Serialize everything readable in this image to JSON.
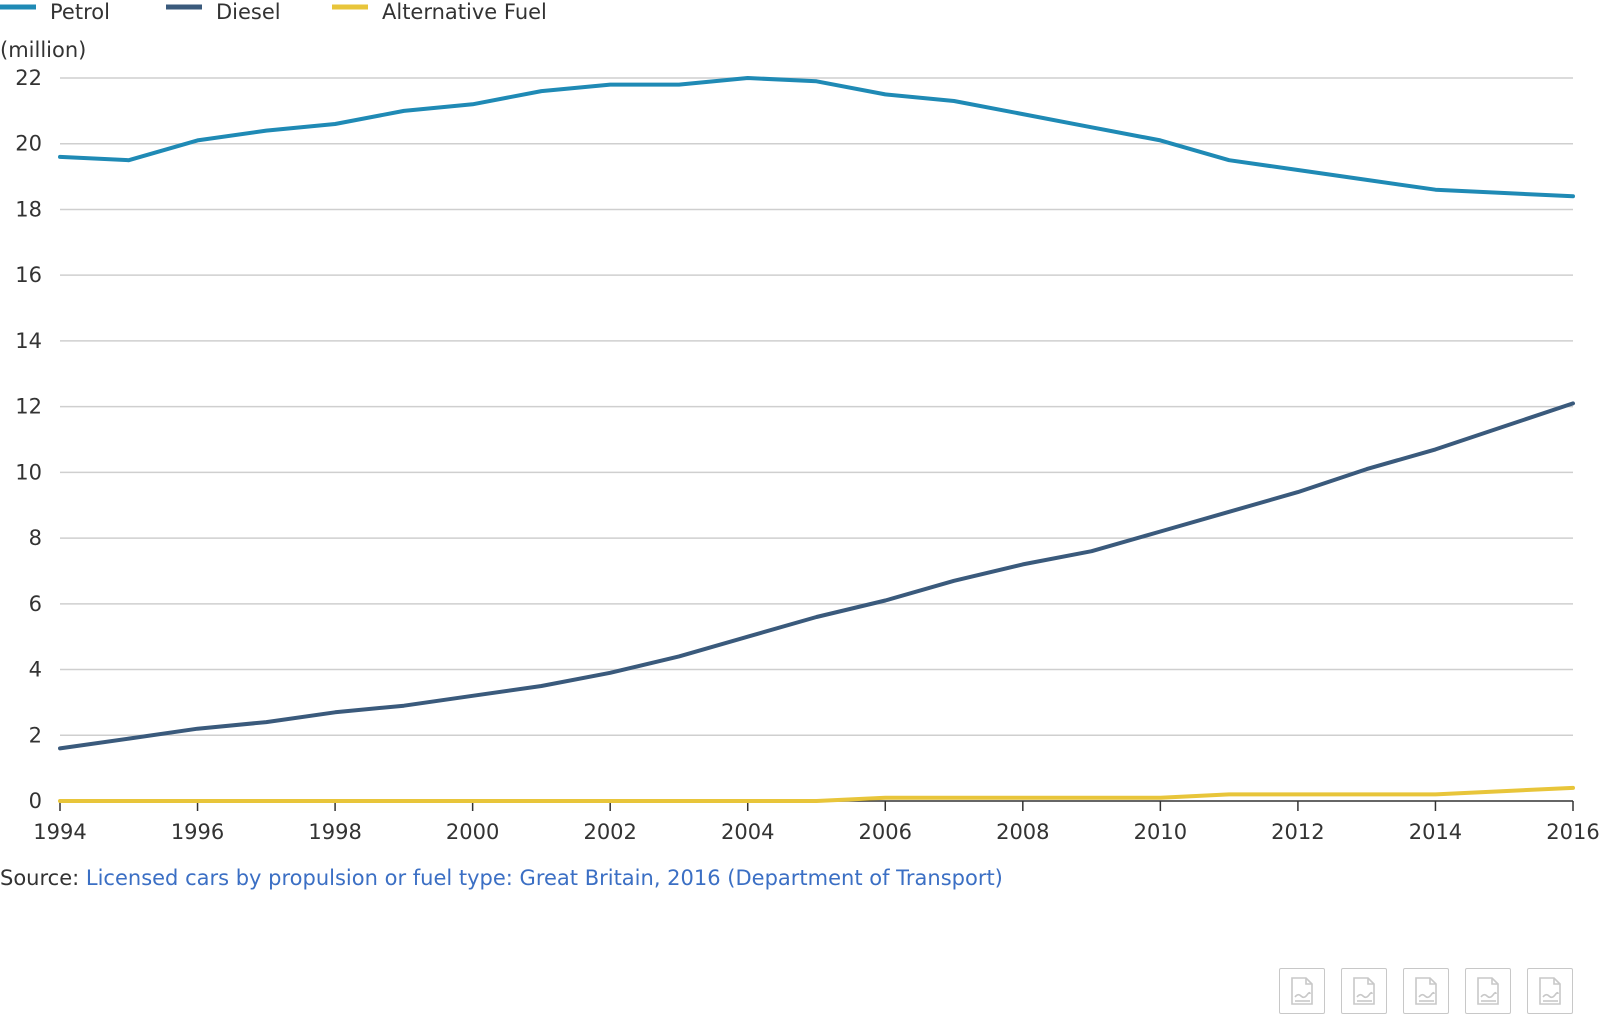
{
  "chart_data": {
    "type": "line",
    "title": "",
    "xlabel": "",
    "ylabel": "(million)",
    "ylim": [
      0,
      22
    ],
    "xlim": [
      1994,
      2016
    ],
    "yticks": [
      "0",
      "2",
      "4",
      "6",
      "8",
      "10",
      "12",
      "14",
      "16",
      "18",
      "20",
      "22"
    ],
    "xticks": [
      "1994",
      "1996",
      "1998",
      "2000",
      "2002",
      "2004",
      "2006",
      "2008",
      "2010",
      "2012",
      "2014",
      "2016"
    ],
    "grid": "horizontal",
    "legend_position": "top-left",
    "x": [
      1994,
      1995,
      1996,
      1997,
      1998,
      1999,
      2000,
      2001,
      2002,
      2003,
      2004,
      2005,
      2006,
      2007,
      2008,
      2009,
      2010,
      2011,
      2012,
      2013,
      2014,
      2015,
      2016
    ],
    "series": [
      {
        "name": "Petrol",
        "color": "#1f8ab5",
        "values": [
          19.6,
          19.5,
          20.1,
          20.4,
          20.6,
          21.0,
          21.2,
          21.6,
          21.8,
          21.8,
          22.0,
          21.9,
          21.5,
          21.3,
          20.9,
          20.5,
          20.1,
          19.5,
          19.2,
          18.9,
          18.6,
          18.5,
          18.4
        ]
      },
      {
        "name": "Diesel",
        "color": "#3a5a7c",
        "values": [
          1.6,
          1.9,
          2.2,
          2.4,
          2.7,
          2.9,
          3.2,
          3.5,
          3.9,
          4.4,
          5.0,
          5.6,
          6.1,
          6.7,
          7.2,
          7.6,
          8.2,
          8.8,
          9.4,
          10.1,
          10.7,
          11.4,
          12.1
        ]
      },
      {
        "name": "Alternative Fuel",
        "color": "#e8c53a",
        "values": [
          0,
          0,
          0,
          0,
          0,
          0,
          0,
          0,
          0,
          0,
          0,
          0,
          0.1,
          0.1,
          0.1,
          0.1,
          0.1,
          0.2,
          0.2,
          0.2,
          0.2,
          0.3,
          0.4
        ]
      }
    ]
  },
  "source": {
    "prefix": "Source: ",
    "link_text": "Licensed cars by propulsion or fuel type: Great Britain, 2016 (Department of Transport)"
  },
  "export_buttons": [
    {
      "icon": "export-image-icon"
    },
    {
      "icon": "export-image-icon"
    },
    {
      "icon": "export-image-icon"
    },
    {
      "icon": "export-image-icon"
    },
    {
      "icon": "export-image-icon"
    }
  ]
}
